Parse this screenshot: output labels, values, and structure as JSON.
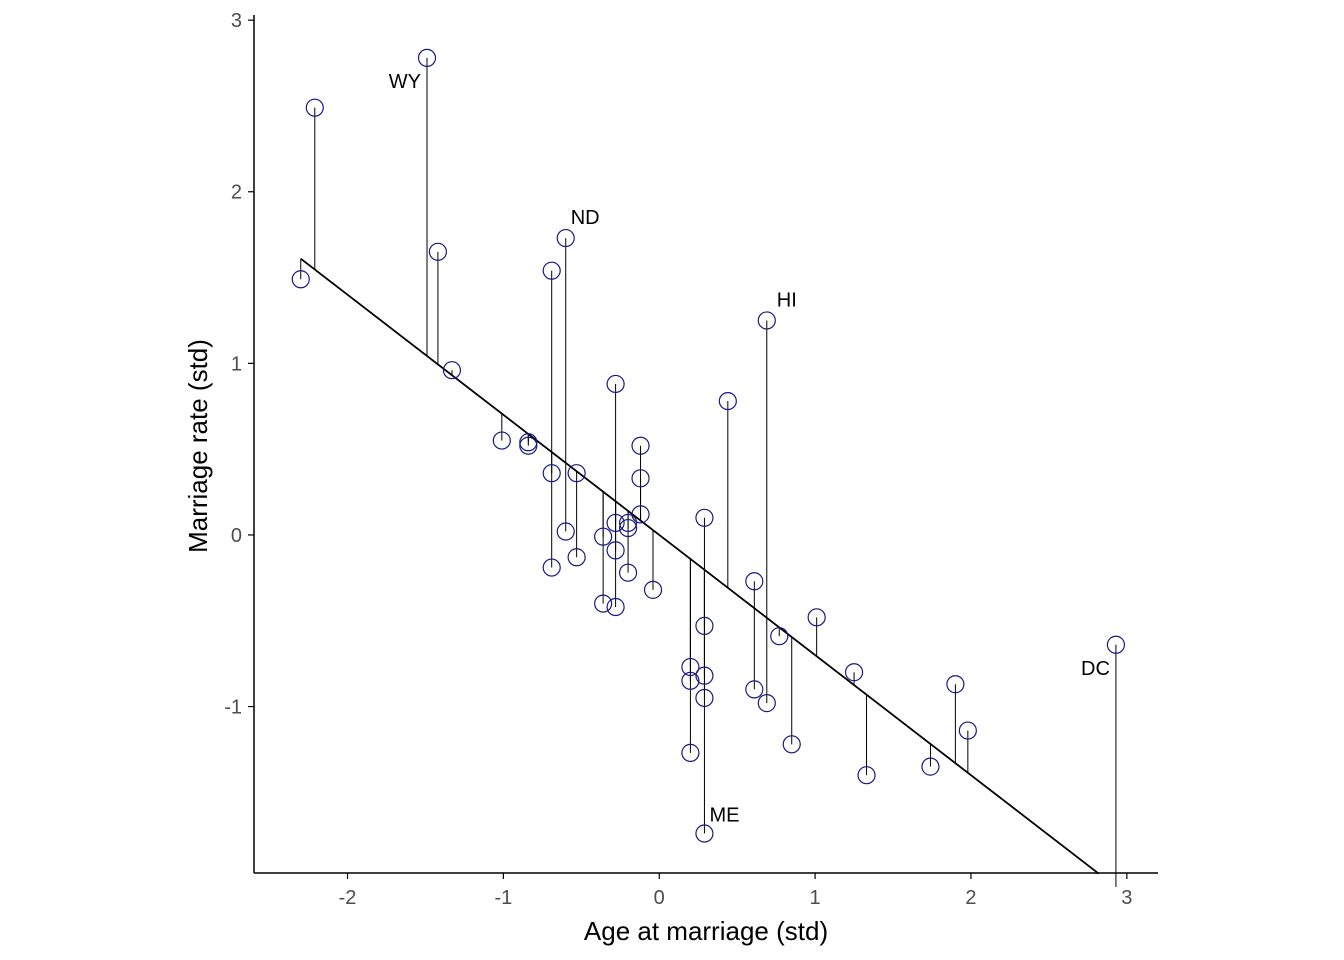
{
  "chart_data": {
    "type": "scatter",
    "title": "",
    "xlabel": "Age at marriage (std)",
    "ylabel": "Marriage rate (std)",
    "xlim": [
      -2.6,
      3.2
    ],
    "ylim": [
      -1.97,
      3.03
    ],
    "x_ticks": [
      -2,
      -1,
      0,
      1,
      2,
      3
    ],
    "y_ticks": [
      -1,
      0,
      1,
      2,
      3
    ],
    "grid": false,
    "fit_line": {
      "intercept": 0.0,
      "slope": -0.7,
      "x_range": [
        -2.3,
        2.82
      ]
    },
    "point_color": "#1a1a80",
    "line_color": "#000000",
    "points": [
      {
        "x": -2.3,
        "y": 1.49
      },
      {
        "x": -2.21,
        "y": 2.49
      },
      {
        "x": -1.49,
        "y": 2.78,
        "label": "WY"
      },
      {
        "x": -1.42,
        "y": 1.65
      },
      {
        "x": -1.33,
        "y": 0.96
      },
      {
        "x": -1.01,
        "y": 0.55
      },
      {
        "x": -0.84,
        "y": 0.54
      },
      {
        "x": -0.84,
        "y": 0.52
      },
      {
        "x": -0.69,
        "y": 1.54
      },
      {
        "x": -0.6,
        "y": 1.73,
        "label": "ND"
      },
      {
        "x": -0.69,
        "y": 0.36
      },
      {
        "x": -0.6,
        "y": 0.02
      },
      {
        "x": -0.53,
        "y": 0.36
      },
      {
        "x": -0.53,
        "y": -0.13
      },
      {
        "x": -0.69,
        "y": -0.19
      },
      {
        "x": -0.36,
        "y": -0.01
      },
      {
        "x": -0.36,
        "y": -0.4
      },
      {
        "x": -0.28,
        "y": 0.88
      },
      {
        "x": -0.28,
        "y": 0.07
      },
      {
        "x": -0.28,
        "y": -0.09
      },
      {
        "x": -0.28,
        "y": -0.42
      },
      {
        "x": -0.2,
        "y": 0.07
      },
      {
        "x": -0.2,
        "y": 0.04
      },
      {
        "x": -0.2,
        "y": -0.22
      },
      {
        "x": -0.12,
        "y": 0.52
      },
      {
        "x": -0.12,
        "y": 0.33
      },
      {
        "x": -0.12,
        "y": 0.12
      },
      {
        "x": -0.04,
        "y": -0.32
      },
      {
        "x": 0.2,
        "y": -0.77
      },
      {
        "x": 0.2,
        "y": -0.85
      },
      {
        "x": 0.2,
        "y": -1.27
      },
      {
        "x": 0.29,
        "y": 0.1
      },
      {
        "x": 0.29,
        "y": -0.53
      },
      {
        "x": 0.29,
        "y": -0.82
      },
      {
        "x": 0.29,
        "y": -0.95
      },
      {
        "x": 0.29,
        "y": -1.74,
        "label": "ME"
      },
      {
        "x": 0.44,
        "y": 0.78
      },
      {
        "x": 0.61,
        "y": -0.27
      },
      {
        "x": 0.61,
        "y": -0.9
      },
      {
        "x": 0.69,
        "y": 1.25,
        "label": "HI"
      },
      {
        "x": 0.69,
        "y": -0.98
      },
      {
        "x": 0.77,
        "y": -0.59
      },
      {
        "x": 0.85,
        "y": -1.22
      },
      {
        "x": 1.01,
        "y": -0.48
      },
      {
        "x": 1.25,
        "y": -0.8
      },
      {
        "x": 1.33,
        "y": -1.4
      },
      {
        "x": 1.74,
        "y": -1.35
      },
      {
        "x": 1.9,
        "y": -0.87
      },
      {
        "x": 1.98,
        "y": -1.14
      },
      {
        "x": 2.93,
        "y": -0.64,
        "label": "DC"
      }
    ]
  }
}
